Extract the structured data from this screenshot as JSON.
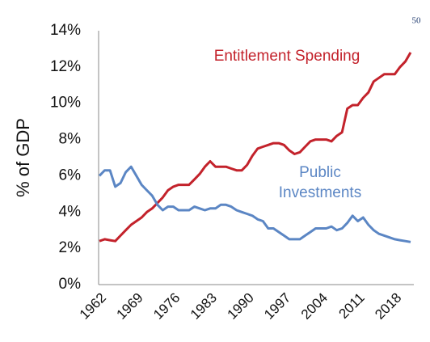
{
  "page_number": "50",
  "chart_data": {
    "type": "line",
    "ylabel": "% of GDP",
    "x": [
      1962,
      1963,
      1964,
      1965,
      1966,
      1967,
      1968,
      1969,
      1970,
      1971,
      1972,
      1973,
      1974,
      1975,
      1976,
      1977,
      1978,
      1979,
      1980,
      1981,
      1982,
      1983,
      1984,
      1985,
      1986,
      1987,
      1988,
      1989,
      1990,
      1991,
      1992,
      1993,
      1994,
      1995,
      1996,
      1997,
      1998,
      1999,
      2000,
      2001,
      2002,
      2003,
      2004,
      2005,
      2006,
      2007,
      2008,
      2009,
      2010,
      2011,
      2012,
      2013,
      2014,
      2015,
      2016,
      2017,
      2018,
      2019,
      2020,
      2021
    ],
    "series": [
      {
        "name": "Entitlement Spending",
        "color": "#c3222b",
        "values": [
          2.4,
          2.5,
          2.45,
          2.4,
          2.7,
          3.0,
          3.3,
          3.5,
          3.7,
          4.0,
          4.2,
          4.5,
          4.8,
          5.2,
          5.4,
          5.5,
          5.5,
          5.5,
          5.8,
          6.1,
          6.5,
          6.8,
          6.5,
          6.5,
          6.5,
          6.4,
          6.3,
          6.3,
          6.6,
          7.1,
          7.5,
          7.6,
          7.7,
          7.8,
          7.8,
          7.7,
          7.4,
          7.2,
          7.3,
          7.6,
          7.9,
          8.0,
          8.0,
          8.0,
          7.9,
          8.2,
          8.4,
          9.7,
          9.9,
          9.9,
          10.3,
          10.6,
          11.2,
          11.4,
          11.6,
          11.6,
          11.6,
          12.0,
          12.3,
          12.8
        ]
      },
      {
        "name": "Public Investments",
        "color": "#5b86c4",
        "values": [
          6.0,
          6.3,
          6.3,
          5.4,
          5.6,
          6.2,
          6.5,
          6.0,
          5.5,
          5.2,
          4.9,
          4.4,
          4.1,
          4.3,
          4.3,
          4.1,
          4.1,
          4.1,
          4.3,
          4.2,
          4.1,
          4.2,
          4.2,
          4.4,
          4.4,
          4.3,
          4.1,
          4.0,
          3.9,
          3.8,
          3.6,
          3.5,
          3.1,
          3.1,
          2.9,
          2.7,
          2.5,
          2.5,
          2.5,
          2.7,
          2.9,
          3.1,
          3.1,
          3.1,
          3.2,
          3.0,
          3.1,
          3.4,
          3.8,
          3.5,
          3.7,
          3.3,
          3.0,
          2.8,
          2.7,
          2.6,
          2.5,
          2.45,
          2.4,
          2.35
        ]
      }
    ],
    "xlim": [
      1962,
      2021
    ],
    "xticks": [
      1962,
      1969,
      1976,
      1983,
      1990,
      1997,
      2004,
      2011,
      2018
    ],
    "ylim": [
      0,
      14
    ],
    "yticks": [
      {
        "value": 0,
        "label": "0%"
      },
      {
        "value": 2,
        "label": "2%"
      },
      {
        "value": 4,
        "label": "4%"
      },
      {
        "value": 6,
        "label": "6%"
      },
      {
        "value": 8,
        "label": "8%"
      },
      {
        "value": 10,
        "label": "10%"
      },
      {
        "value": 12,
        "label": "12%"
      },
      {
        "value": 14,
        "label": "14%"
      }
    ],
    "grid": false
  }
}
